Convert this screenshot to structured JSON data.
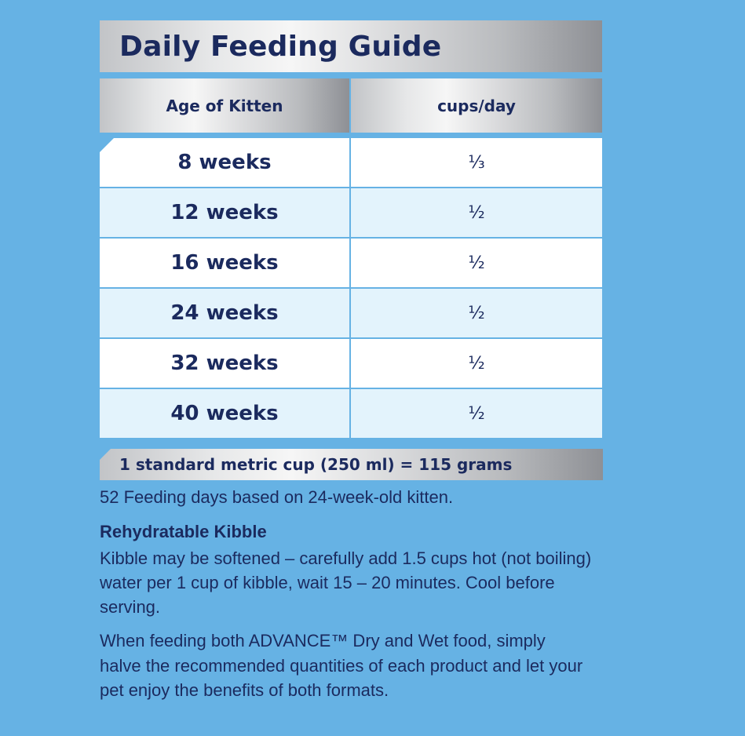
{
  "title": "Daily Feeding Guide",
  "table": {
    "headers": {
      "age": "Age of Kitten",
      "cups": "cups/day"
    },
    "rows": [
      {
        "age": "8 weeks",
        "cups": "⅓"
      },
      {
        "age": "12 weeks",
        "cups": "½"
      },
      {
        "age": "16 weeks",
        "cups": "½"
      },
      {
        "age": "24 weeks",
        "cups": "½"
      },
      {
        "age": "32 weeks",
        "cups": "½"
      },
      {
        "age": "40 weeks",
        "cups": "½"
      }
    ]
  },
  "cup_note": "1 standard metric cup (250 ml) = 115 grams",
  "feeding_days": "52 Feeding days based on 24-week-old kitten.",
  "kibble": {
    "heading": "Rehydratable Kibble",
    "body": "Kibble may be softened – carefully add 1.5 cups hot (not boiling) water per 1 cup of kibble, wait 15 – 20 minutes. Cool before serving."
  },
  "advance_note": "When feeding both ADVANCE™ Dry and Wet food, simply halve the recommended quantities of each product and let your pet enjoy the benefits of both formats.",
  "colors": {
    "background": "#66b2e4",
    "text_navy": "#1b2a5e",
    "row_white": "#ffffff",
    "row_tint": "#e3f3fc"
  }
}
